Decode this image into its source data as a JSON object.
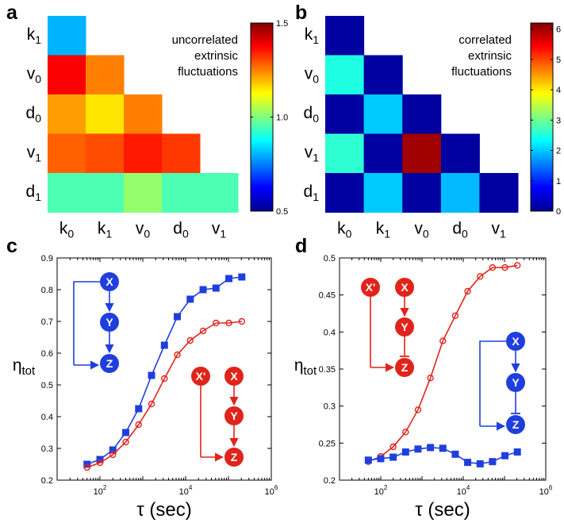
{
  "chart_data": [
    {
      "panel": "a",
      "type": "heatmap",
      "row_labels": [
        {
          "b": "k",
          "s": "1"
        },
        {
          "b": "v",
          "s": "0"
        },
        {
          "b": "d",
          "s": "0"
        },
        {
          "b": "v",
          "s": "1"
        },
        {
          "b": "d",
          "s": "1"
        }
      ],
      "col_labels": [
        {
          "b": "k",
          "s": "0"
        },
        {
          "b": "k",
          "s": "1"
        },
        {
          "b": "v",
          "s": "0"
        },
        {
          "b": "d",
          "s": "0"
        },
        {
          "b": "v",
          "s": "1"
        }
      ],
      "values": [
        [
          0.8
        ],
        [
          1.38,
          1.25
        ],
        [
          1.22,
          1.15,
          1.25
        ],
        [
          1.28,
          1.3,
          1.35,
          1.32
        ],
        [
          0.95,
          0.95,
          1.02,
          0.95,
          0.95
        ]
      ],
      "annotation": [
        "uncorrelated",
        "extrinsic",
        "fluctuations"
      ],
      "colorbar": {
        "range": [
          0.5,
          1.5
        ],
        "ticks": [
          "1.5",
          "1.0",
          "0.5"
        ],
        "tick_values": [
          1.5,
          1.0,
          0.5
        ]
      }
    },
    {
      "panel": "b",
      "type": "heatmap",
      "row_labels": [
        {
          "b": "k",
          "s": "1"
        },
        {
          "b": "v",
          "s": "0"
        },
        {
          "b": "d",
          "s": "0"
        },
        {
          "b": "v",
          "s": "1"
        },
        {
          "b": "d",
          "s": "1"
        }
      ],
      "col_labels": [
        {
          "b": "k",
          "s": "0"
        },
        {
          "b": "k",
          "s": "1"
        },
        {
          "b": "v",
          "s": "0"
        },
        {
          "b": "d",
          "s": "0"
        },
        {
          "b": "v",
          "s": "1"
        }
      ],
      "values": [
        [
          0.2
        ],
        [
          2.5,
          0.2
        ],
        [
          0.2,
          2.0,
          0.2
        ],
        [
          2.6,
          0.2,
          6.0,
          0.2
        ],
        [
          0.2,
          2.0,
          0.2,
          1.9,
          0.2
        ]
      ],
      "annotation": [
        "correlated",
        "extrinsic",
        "fluctuations"
      ],
      "colorbar": {
        "range": [
          0,
          6.2
        ],
        "ticks": [
          "6",
          "5",
          "4",
          "3",
          "2",
          "1",
          "0"
        ],
        "tick_values": [
          6,
          5,
          4,
          3,
          2,
          1,
          0
        ]
      }
    },
    {
      "panel": "c",
      "type": "line",
      "xscale": "log",
      "xlim": [
        10,
        1000000
      ],
      "ylim": [
        0.2,
        0.9
      ],
      "xticks": [
        {
          "base": "10",
          "exp": "2",
          "value": 100
        },
        {
          "base": "10",
          "exp": "4",
          "value": 10000
        },
        {
          "base": "10",
          "exp": "6",
          "value": 1000000
        }
      ],
      "yticks": [
        "0.2",
        "0.3",
        "0.4",
        "0.5",
        "0.6",
        "0.7",
        "0.8",
        "0.9"
      ],
      "xlabel": "τ (sec)",
      "ylabel": {
        "b": "η",
        "s": "tot"
      },
      "series": [
        {
          "name": "blue",
          "color": "#1f3fdd",
          "marker": "square",
          "x": [
            50,
            100,
            200,
            400,
            800,
            1600,
            3200,
            6400,
            12800,
            25600,
            51200,
            102400,
            204800
          ],
          "y": [
            0.25,
            0.265,
            0.295,
            0.35,
            0.425,
            0.53,
            0.625,
            0.715,
            0.77,
            0.8,
            0.805,
            0.835,
            0.84
          ]
        },
        {
          "name": "red",
          "color": "#e0241b",
          "marker": "circle",
          "x": [
            50,
            100,
            200,
            400,
            800,
            1600,
            3200,
            6400,
            12800,
            25600,
            51200,
            102400,
            204800
          ],
          "y": [
            0.24,
            0.255,
            0.28,
            0.32,
            0.375,
            0.44,
            0.52,
            0.595,
            0.64,
            0.67,
            0.695,
            0.695,
            0.7
          ]
        }
      ],
      "diagrams": [
        {
          "color": "#1f3fdd",
          "nodes": [
            "X",
            "Y",
            "Z"
          ],
          "last_edge": "arrow",
          "feedforward": "arrow"
        },
        {
          "color": "#e0241b",
          "nodes": [
            "X'",
            "X",
            "Y",
            "Z"
          ],
          "last_edge": "arrow"
        }
      ]
    },
    {
      "panel": "d",
      "type": "line",
      "xscale": "log",
      "xlim": [
        10,
        1000000
      ],
      "ylim": [
        0.2,
        0.5
      ],
      "xticks": [
        {
          "base": "10",
          "exp": "2",
          "value": 100
        },
        {
          "base": "10",
          "exp": "4",
          "value": 10000
        },
        {
          "base": "10",
          "exp": "6",
          "value": 1000000
        }
      ],
      "yticks": [
        "0.2",
        "0.25",
        "0.3",
        "0.35",
        "0.4",
        "0.45",
        "0.5"
      ],
      "xlabel": "τ (sec)",
      "ylabel": {
        "b": "η",
        "s": "tot"
      },
      "series": [
        {
          "name": "red",
          "color": "#e0241b",
          "marker": "circle",
          "x": [
            50,
            100,
            200,
            400,
            800,
            1600,
            3200,
            6400,
            12800,
            25600,
            51200,
            102400,
            204800
          ],
          "y": [
            0.225,
            0.232,
            0.245,
            0.265,
            0.295,
            0.338,
            0.388,
            0.422,
            0.455,
            0.475,
            0.487,
            0.487,
            0.49
          ]
        },
        {
          "name": "blue",
          "color": "#1f3fdd",
          "marker": "square",
          "x": [
            50,
            100,
            200,
            400,
            800,
            1600,
            3200,
            6400,
            12800,
            25600,
            51200,
            102400,
            204800
          ],
          "y": [
            0.227,
            0.229,
            0.231,
            0.238,
            0.242,
            0.244,
            0.243,
            0.235,
            0.224,
            0.222,
            0.225,
            0.233,
            0.238
          ]
        }
      ],
      "diagrams": [
        {
          "color": "#e0241b",
          "nodes": [
            "X'",
            "X",
            "Y",
            "Z"
          ],
          "last_edge": "repress"
        },
        {
          "color": "#1f3fdd",
          "nodes": [
            "X",
            "Y",
            "Z"
          ],
          "last_edge": "repress",
          "feedforward": "arrow"
        }
      ]
    }
  ]
}
